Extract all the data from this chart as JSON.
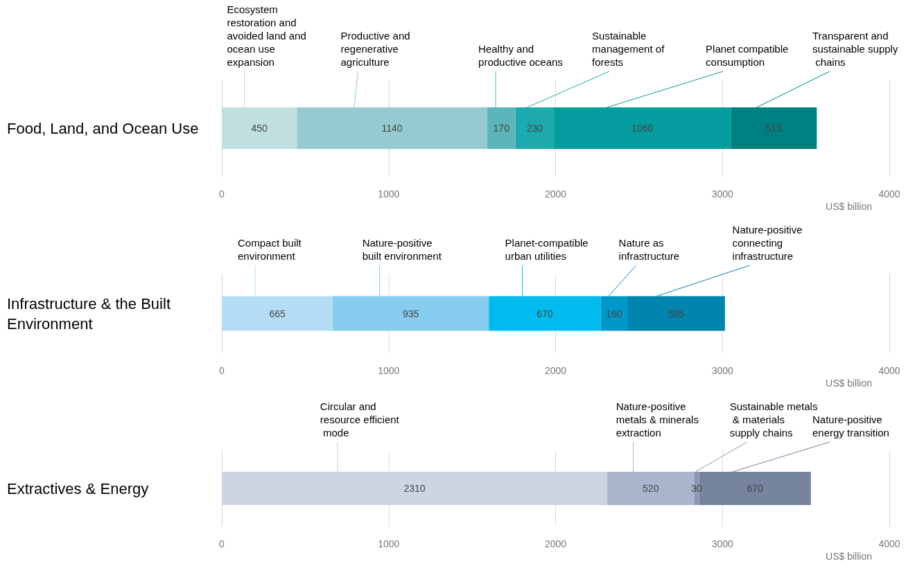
{
  "chart_data": [
    {
      "type": "bar",
      "orientation": "horizontal",
      "stacked": true,
      "data_labels": true,
      "grid": "x",
      "categories": [
        "Food, Land, and Ocean Use"
      ],
      "xlim": [
        0,
        4000
      ],
      "xticks": [
        0,
        1000,
        2000,
        3000,
        4000
      ],
      "xlabel": "US$ billion",
      "series": [
        {
          "name": "Ecosystem restoration and avoided land and ocean use expansion",
          "color": "#bfdfe0",
          "values": [
            450
          ]
        },
        {
          "name": "Productive and regenerative agriculture",
          "color": "#95cbd0",
          "values": [
            1140
          ]
        },
        {
          "name": "Healthy and productive oceans",
          "color": "#5bb5bb",
          "values": [
            170
          ]
        },
        {
          "name": "Sustainable management of forests",
          "color": "#1daaae",
          "values": [
            230
          ]
        },
        {
          "name": "Planet compatible consumption",
          "color": "#049c9e",
          "values": [
            1060
          ]
        },
        {
          "name": "Transparent and sustainable supply chains",
          "color": "#007f80",
          "values": [
            515
          ]
        }
      ]
    },
    {
      "type": "bar",
      "orientation": "horizontal",
      "stacked": true,
      "data_labels": true,
      "grid": "x",
      "categories": [
        "Infrastructure & the Built Environment"
      ],
      "xlim": [
        0,
        4000
      ],
      "xticks": [
        0,
        1000,
        2000,
        3000,
        4000
      ],
      "xlabel": "US$ billion",
      "series": [
        {
          "name": "Compact built environment",
          "color": "#b4ddf5",
          "values": [
            665
          ]
        },
        {
          "name": "Nature-positive built environment",
          "color": "#86ccef",
          "values": [
            935
          ]
        },
        {
          "name": "Planet-compatible urban utilities",
          "color": "#00bbee",
          "values": [
            670
          ]
        },
        {
          "name": "Nature as infrastructure",
          "color": "#0098c8",
          "values": [
            160
          ]
        },
        {
          "name": "Nature-positive connecting infrastructure",
          "color": "#0086ae",
          "values": [
            585
          ]
        }
      ]
    },
    {
      "type": "bar",
      "orientation": "horizontal",
      "stacked": true,
      "data_labels": true,
      "grid": "x",
      "categories": [
        "Extractives & Energy"
      ],
      "xlim": [
        0,
        4000
      ],
      "xticks": [
        0,
        1000,
        2000,
        3000,
        4000
      ],
      "xlabel": "US$ billion",
      "series": [
        {
          "name": "Circular and resource efficient mode",
          "color": "#cdd5e2",
          "values": [
            2310
          ]
        },
        {
          "name": "Nature-positive metals & minerals extraction",
          "color": "#a8b5cb",
          "values": [
            520
          ]
        },
        {
          "name": "Sustainable metals & materials supply chains",
          "color": "#8b98b4",
          "values": [
            30
          ]
        },
        {
          "name": "Nature-positive energy transition",
          "color": "#76849f",
          "values": [
            670
          ]
        }
      ]
    }
  ]
}
